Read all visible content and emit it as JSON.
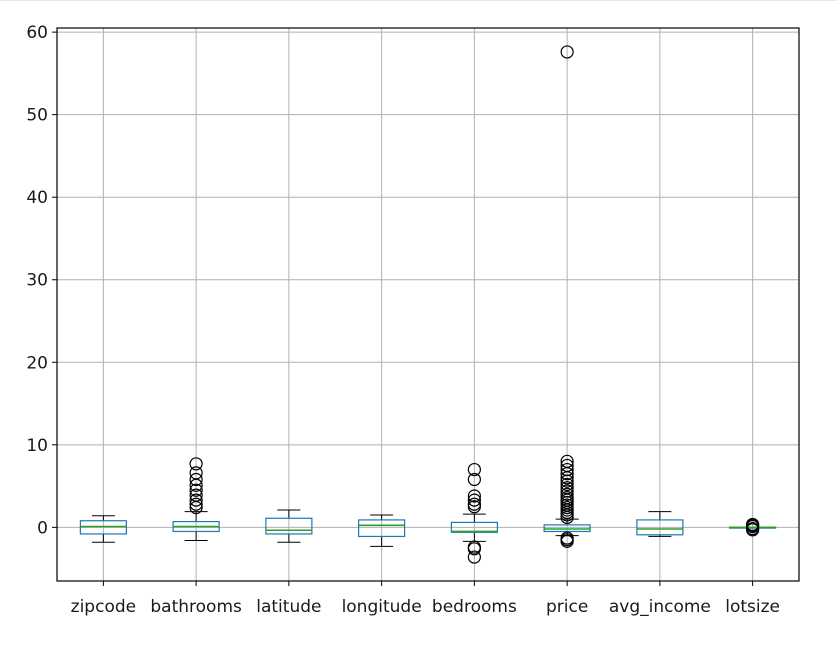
{
  "chart_data": {
    "type": "box",
    "title": "",
    "xlabel": "",
    "ylabel": "",
    "categories": [
      "zipcode",
      "bathrooms",
      "latitude",
      "longitude",
      "bedrooms",
      "price",
      "avg_income",
      "lotsize"
    ],
    "ylim": [
      -6.5,
      60.5
    ],
    "yticks": [
      0,
      10,
      20,
      30,
      40,
      50,
      60
    ],
    "grid": true,
    "colors": {
      "box": "#1f77b4",
      "median": "#2ca02c",
      "whisker": "#000000",
      "grid": "#b0b0b0",
      "outlier": "#000000"
    },
    "boxes": [
      {
        "name": "zipcode",
        "whislo": -1.8,
        "q1": -0.8,
        "med": 0.1,
        "q3": 0.8,
        "whishi": 1.4,
        "fliers": []
      },
      {
        "name": "bathrooms",
        "whislo": -1.6,
        "q1": -0.5,
        "med": 0.1,
        "q3": 0.7,
        "whishi": 1.9,
        "fliers": [
          2.4,
          2.8,
          3.3,
          3.9,
          4.5,
          5.1,
          5.8,
          6.6,
          7.7
        ]
      },
      {
        "name": "latitude",
        "whislo": -1.8,
        "q1": -0.8,
        "med": -0.35,
        "q3": 1.1,
        "whishi": 2.1,
        "fliers": []
      },
      {
        "name": "longitude",
        "whislo": -2.3,
        "q1": -1.1,
        "med": 0.25,
        "q3": 0.9,
        "whishi": 1.5,
        "fliers": []
      },
      {
        "name": "bedrooms",
        "whislo": -1.7,
        "q1": -0.6,
        "med": -0.5,
        "q3": 0.6,
        "whishi": 1.6,
        "fliers": [
          -3.6,
          -2.6,
          -2.4,
          2.5,
          2.8,
          3.3,
          3.8,
          5.8,
          7.0
        ]
      },
      {
        "name": "price",
        "whislo": -1.0,
        "q1": -0.5,
        "med": -0.2,
        "q3": 0.3,
        "whishi": 1.0,
        "fliers": [
          -1.7,
          -1.5,
          -1.3,
          1.2,
          1.5,
          1.8,
          2.1,
          2.4,
          2.7,
          3.0,
          3.3,
          3.6,
          4.0,
          4.4,
          4.8,
          5.2,
          5.6,
          6.0,
          6.5,
          7.0,
          7.5,
          8.0,
          57.6
        ]
      },
      {
        "name": "avg_income",
        "whislo": -1.1,
        "q1": -0.9,
        "med": -0.2,
        "q3": 0.9,
        "whishi": 1.9,
        "fliers": []
      },
      {
        "name": "lotsize",
        "whislo": -0.05,
        "q1": -0.03,
        "med": 0.0,
        "q3": 0.03,
        "whishi": 0.05,
        "fliers": [
          -0.3,
          -0.15,
          0.1,
          0.25,
          0.35
        ]
      }
    ]
  }
}
